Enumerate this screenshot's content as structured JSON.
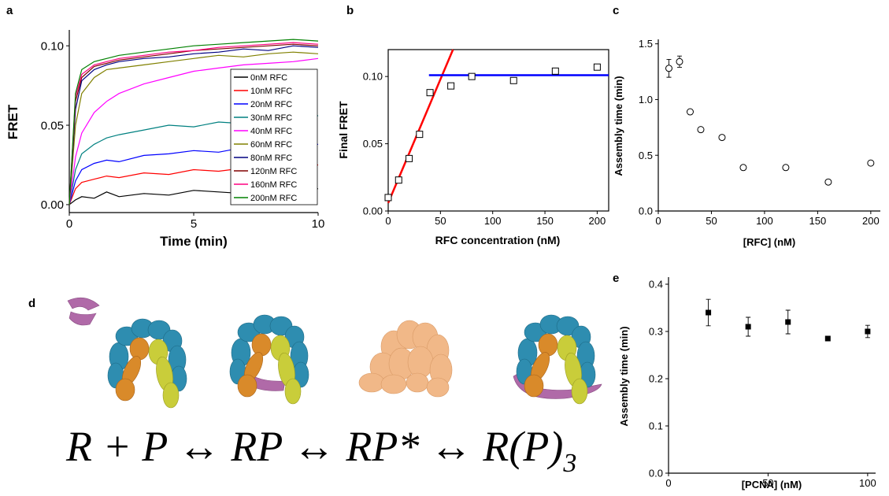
{
  "chart_data": [
    {
      "type": "line",
      "label": "a",
      "xlabel": "Time (min)",
      "ylabel": "FRET",
      "x": [
        0,
        0.25,
        0.5,
        1,
        1.5,
        2,
        3,
        4,
        5,
        6,
        7,
        8,
        9,
        10
      ],
      "series": [
        {
          "name": "0nM RFC",
          "color": "#000000",
          "values": [
            0,
            0.003,
            0.005,
            0.004,
            0.008,
            0.005,
            0.007,
            0.006,
            0.009,
            0.008,
            0.007,
            0.009,
            0.008,
            0.01
          ]
        },
        {
          "name": "10nM RFC",
          "color": "#ff0000",
          "values": [
            0,
            0.01,
            0.014,
            0.016,
            0.018,
            0.017,
            0.02,
            0.019,
            0.022,
            0.021,
            0.023,
            0.022,
            0.024,
            0.025
          ]
        },
        {
          "name": "20nM RFC",
          "color": "#0000ff",
          "values": [
            0,
            0.015,
            0.022,
            0.026,
            0.028,
            0.027,
            0.031,
            0.032,
            0.034,
            0.033,
            0.036,
            0.035,
            0.037,
            0.038
          ]
        },
        {
          "name": "30nM RFC",
          "color": "#008080",
          "values": [
            0,
            0.022,
            0.032,
            0.038,
            0.042,
            0.044,
            0.047,
            0.05,
            0.049,
            0.052,
            0.051,
            0.054,
            0.053,
            0.056
          ]
        },
        {
          "name": "40nM RFC",
          "color": "#ff00ff",
          "values": [
            0,
            0.03,
            0.045,
            0.058,
            0.065,
            0.07,
            0.076,
            0.08,
            0.084,
            0.086,
            0.088,
            0.089,
            0.09,
            0.092
          ]
        },
        {
          "name": "60nM RFC",
          "color": "#808000",
          "values": [
            0,
            0.05,
            0.07,
            0.08,
            0.085,
            0.086,
            0.088,
            0.09,
            0.092,
            0.094,
            0.093,
            0.095,
            0.096,
            0.095
          ]
        },
        {
          "name": "80nM RFC",
          "color": "#000080",
          "values": [
            0,
            0.06,
            0.078,
            0.085,
            0.088,
            0.09,
            0.092,
            0.093,
            0.095,
            0.096,
            0.098,
            0.097,
            0.1,
            0.099
          ]
        },
        {
          "name": "120nM RFC",
          "color": "#800000",
          "values": [
            0,
            0.065,
            0.08,
            0.087,
            0.089,
            0.091,
            0.093,
            0.095,
            0.097,
            0.098,
            0.099,
            0.1,
            0.101,
            0.1
          ]
        },
        {
          "name": "160nM RFC",
          "color": "#ff0080",
          "values": [
            0,
            0.068,
            0.082,
            0.088,
            0.09,
            0.092,
            0.094,
            0.096,
            0.097,
            0.099,
            0.1,
            0.101,
            0.102,
            0.101
          ]
        },
        {
          "name": "200nM RFC",
          "color": "#008000",
          "values": [
            0,
            0.07,
            0.085,
            0.09,
            0.092,
            0.094,
            0.096,
            0.098,
            0.1,
            0.101,
            0.102,
            0.103,
            0.104,
            0.103
          ]
        }
      ],
      "xlim": [
        0,
        10
      ],
      "xticks": [
        0,
        5,
        10
      ],
      "ylim": [
        -0.005,
        0.11
      ],
      "yticks": [
        {
          "value": 0,
          "label": "0.00"
        },
        0.05,
        {
          "value": 0.1,
          "label": "0.10"
        }
      ],
      "legend": "right"
    },
    {
      "type": "scatter",
      "label": "b",
      "xlabel": "RFC concentration (nM)",
      "ylabel": "Final FRET",
      "x": [
        0,
        10,
        20,
        30,
        40,
        60,
        80,
        120,
        160,
        200
      ],
      "y": [
        0.01,
        0.023,
        0.039,
        0.057,
        0.088,
        0.093,
        0.1,
        0.097,
        0.104,
        0.107
      ],
      "marker": "square",
      "filled": false,
      "color": "#000000",
      "lines": [
        {
          "color": "#ff0000",
          "x": [
            0,
            62
          ],
          "y": [
            0.006,
            0.12
          ]
        },
        {
          "color": "#0000ff",
          "x": [
            39,
            211
          ],
          "y": [
            0.101,
            0.101
          ]
        }
      ],
      "xlim": [
        0,
        211
      ],
      "xticks": [
        0,
        50,
        100,
        150,
        200
      ],
      "ylim": [
        0,
        0.12
      ],
      "yticks": [
        {
          "value": 0,
          "label": "0.00"
        },
        0.05,
        {
          "value": 0.1,
          "label": "0.10"
        }
      ]
    },
    {
      "type": "scatter",
      "label": "c",
      "xlabel": "[RFC] (nM)",
      "ylabel": "Assembly time (min)",
      "x": [
        10,
        20,
        30,
        40,
        60,
        80,
        120,
        160,
        200
      ],
      "y": [
        1.28,
        1.34,
        0.89,
        0.73,
        0.66,
        0.39,
        0.39,
        0.26,
        0.43
      ],
      "errors": [
        0.08,
        0.05,
        0.02,
        0.02,
        0.02,
        0.02,
        0.02,
        0.02,
        0.02
      ],
      "marker": "circle",
      "filled": false,
      "color": "#000000",
      "xlim": [
        0,
        209
      ],
      "xticks": [
        0,
        50,
        100,
        150,
        200
      ],
      "ylim": [
        0,
        1.54
      ],
      "yticks": [
        {
          "value": 0,
          "label": "0.0"
        },
        0.5,
        {
          "value": 1,
          "label": "1.0"
        },
        1.5
      ]
    },
    {
      "type": "scatter",
      "label": "e",
      "xlabel": "[PCNA] (nM)",
      "ylabel": "Assembly time (min)",
      "x": [
        20,
        40,
        60,
        80,
        100
      ],
      "y": [
        0.34,
        0.31,
        0.32,
        0.285,
        0.3
      ],
      "errors": [
        0.028,
        0.02,
        0.025,
        0.002,
        0.013
      ],
      "marker": "square",
      "filled": true,
      "color": "#000000",
      "xlim": [
        0,
        104
      ],
      "xticks": [
        0,
        50,
        100
      ],
      "ylim": [
        0,
        0.415
      ],
      "yticks": [
        {
          "value": 0,
          "label": "0.0"
        },
        0.1,
        0.2,
        0.3,
        0.4
      ]
    }
  ],
  "diagram": {
    "label": "d",
    "equation": "R + P ↔ RP ↔ RP* ↔ R(P)",
    "subscript": "3"
  }
}
